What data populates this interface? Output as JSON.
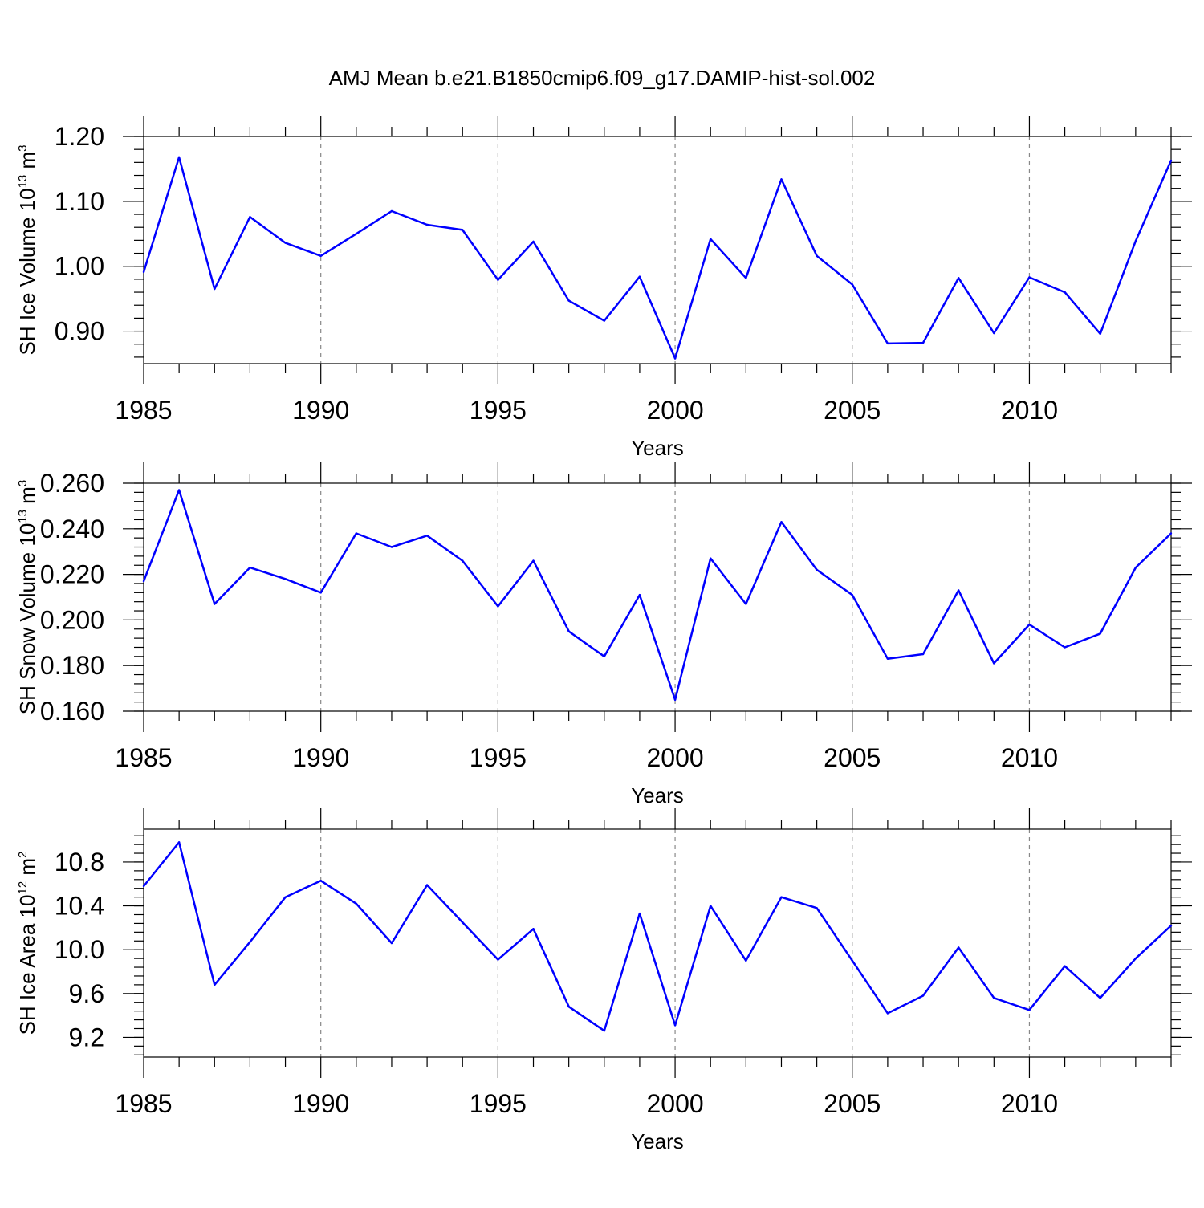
{
  "title": "AMJ Mean b.e21.B1850cmip6.f09_g17.DAMIP-hist-sol.002",
  "line_color": "#0000ff",
  "chart_data": [
    {
      "type": "line",
      "ylabel_main": "SH Ice Volume 10",
      "ylabel_sup1": "13",
      "ylabel_mid": " m",
      "ylabel_sup2": "3",
      "xlabel": "Years",
      "xlim": [
        1985,
        2014
      ],
      "ylim": [
        0.85,
        1.2
      ],
      "xticks": [
        1985,
        1990,
        1995,
        2000,
        2005,
        2010
      ],
      "xtick_labels": [
        "1985",
        "1990",
        "1995",
        "2000",
        "2005",
        "2010"
      ],
      "yticks": [
        0.9,
        1.0,
        1.1,
        1.2
      ],
      "ytick_labels": [
        "0.90",
        "1.00",
        "1.10",
        "1.20"
      ],
      "yminor_step": 0.02,
      "x": [
        1985,
        1986,
        1987,
        1988,
        1989,
        1990,
        1991,
        1992,
        1993,
        1994,
        1995,
        1996,
        1997,
        1998,
        1999,
        2000,
        2001,
        2002,
        2003,
        2004,
        2005,
        2006,
        2007,
        2008,
        2009,
        2010,
        2011,
        2012,
        2013,
        2014
      ],
      "values": [
        0.991,
        1.168,
        0.965,
        1.076,
        1.036,
        1.016,
        1.05,
        1.085,
        1.064,
        1.056,
        0.979,
        1.038,
        0.947,
        0.916,
        0.984,
        0.858,
        1.042,
        0.982,
        1.134,
        1.016,
        0.972,
        0.881,
        0.882,
        0.982,
        0.897,
        0.983,
        0.96,
        0.896,
        1.039,
        1.163
      ]
    },
    {
      "type": "line",
      "ylabel_main": "SH Snow Volume 10",
      "ylabel_sup1": "13",
      "ylabel_mid": " m",
      "ylabel_sup2": "3",
      "xlabel": "Years",
      "xlim": [
        1985,
        2014
      ],
      "ylim": [
        0.16,
        0.26
      ],
      "xticks": [
        1985,
        1990,
        1995,
        2000,
        2005,
        2010
      ],
      "xtick_labels": [
        "1985",
        "1990",
        "1995",
        "2000",
        "2005",
        "2010"
      ],
      "yticks": [
        0.16,
        0.18,
        0.2,
        0.22,
        0.24,
        0.26
      ],
      "ytick_labels": [
        "0.160",
        "0.180",
        "0.200",
        "0.220",
        "0.240",
        "0.260"
      ],
      "yminor_step": 0.004,
      "x": [
        1985,
        1986,
        1987,
        1988,
        1989,
        1990,
        1991,
        1992,
        1993,
        1994,
        1995,
        1996,
        1997,
        1998,
        1999,
        2000,
        2001,
        2002,
        2003,
        2004,
        2005,
        2006,
        2007,
        2008,
        2009,
        2010,
        2011,
        2012,
        2013,
        2014
      ],
      "values": [
        0.217,
        0.257,
        0.207,
        0.223,
        0.218,
        0.212,
        0.238,
        0.232,
        0.237,
        0.226,
        0.206,
        0.226,
        0.195,
        0.184,
        0.211,
        0.165,
        0.227,
        0.207,
        0.243,
        0.222,
        0.211,
        0.183,
        0.185,
        0.213,
        0.181,
        0.198,
        0.188,
        0.194,
        0.223,
        0.238
      ]
    },
    {
      "type": "line",
      "ylabel_main": "SH Ice Area 10",
      "ylabel_sup1": "12",
      "ylabel_mid": " m",
      "ylabel_sup2": "2",
      "xlabel": "Years",
      "xlim": [
        1985,
        2014
      ],
      "ylim": [
        9.02,
        11.1
      ],
      "xticks": [
        1985,
        1990,
        1995,
        2000,
        2005,
        2010
      ],
      "xtick_labels": [
        "1985",
        "1990",
        "1995",
        "2000",
        "2005",
        "2010"
      ],
      "yticks": [
        9.2,
        9.6,
        10.0,
        10.4,
        10.8
      ],
      "ytick_labels": [
        "9.2",
        "9.6",
        "10.0",
        "10.4",
        "10.8"
      ],
      "yminor_step": 0.08,
      "x": [
        1985,
        1986,
        1987,
        1988,
        1989,
        1990,
        1991,
        1992,
        1993,
        1994,
        1995,
        1996,
        1997,
        1998,
        1999,
        2000,
        2001,
        2002,
        2003,
        2004,
        2005,
        2006,
        2007,
        2008,
        2009,
        2010,
        2011,
        2012,
        2013,
        2014
      ],
      "values": [
        10.58,
        10.98,
        9.68,
        10.07,
        10.48,
        10.63,
        10.42,
        10.06,
        10.59,
        10.25,
        9.91,
        10.19,
        9.48,
        9.26,
        10.33,
        9.31,
        10.4,
        9.9,
        10.48,
        10.38,
        9.9,
        9.42,
        9.58,
        10.02,
        9.56,
        9.45,
        9.85,
        9.56,
        9.92,
        10.22
      ]
    }
  ]
}
